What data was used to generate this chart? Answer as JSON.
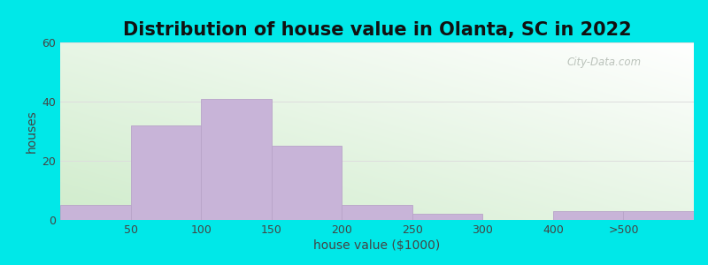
{
  "title": "Distribution of house value in Olanta, SC in 2022",
  "xlabel": "house value ($1000)",
  "ylabel": "houses",
  "xtick_labels": [
    "50",
    "100",
    "150",
    "200",
    "250",
    "300",
    "400",
    ">500"
  ],
  "bar_heights": [
    5,
    32,
    41,
    25,
    5,
    2,
    0,
    3,
    3
  ],
  "bar_color": "#c8b4d8",
  "bar_edge_color": "#b8a4c8",
  "ylim": [
    0,
    60
  ],
  "yticks": [
    0,
    20,
    40,
    60
  ],
  "outer_bg_color": "#00e8e8",
  "watermark_text": "City-Data.com",
  "title_fontsize": 15,
  "axis_label_fontsize": 10,
  "tick_fontsize": 9,
  "grid_color": "#dddddd",
  "plot_bg_left_bottom": "#d0eccc",
  "plot_bg_right_top": "#ffffff"
}
